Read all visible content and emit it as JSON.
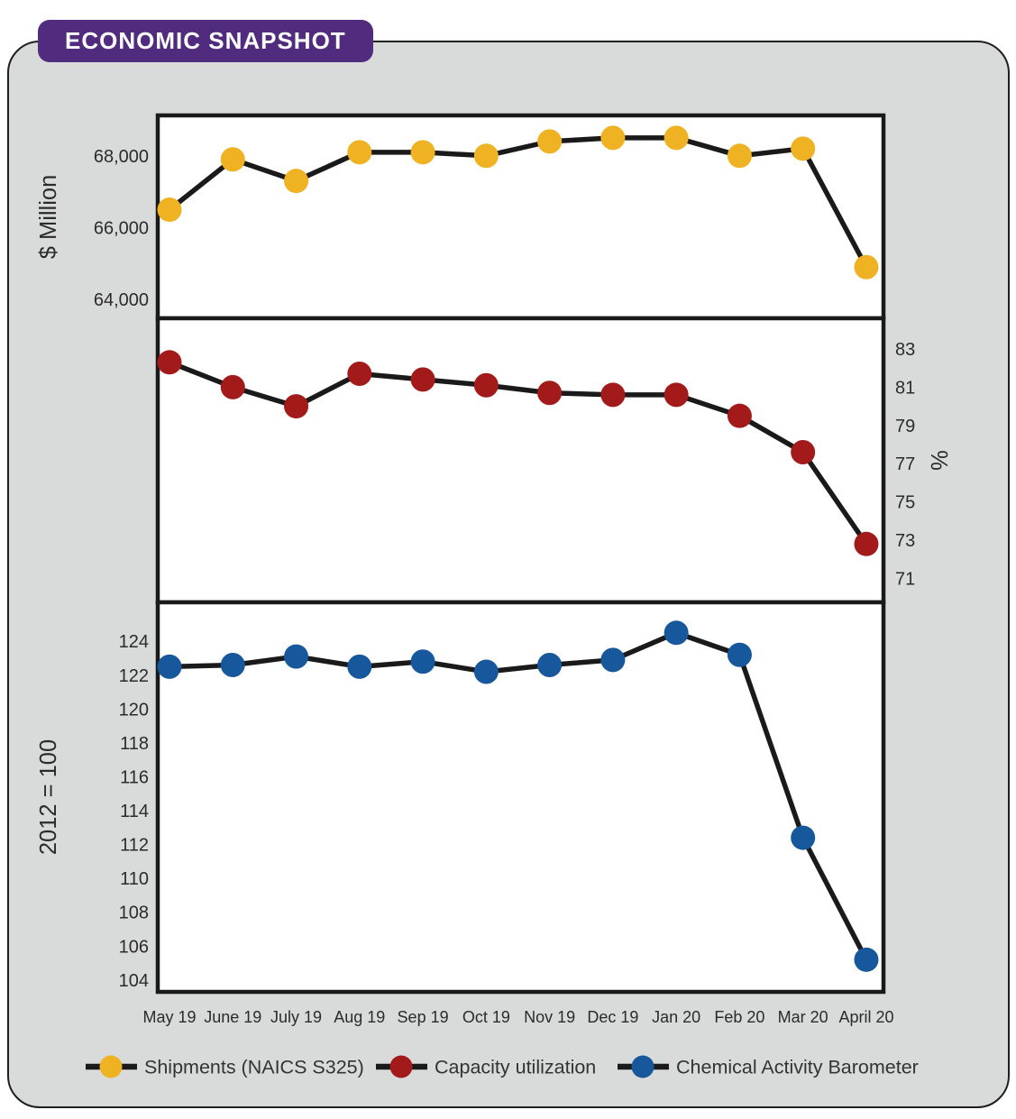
{
  "page": {
    "title": "ECONOMIC SNAPSHOT",
    "colors": {
      "badge_purple": "#512B7E",
      "card_gray": "#D8DBDA",
      "line_black": "#1a1a1a",
      "axis_text": "#2d2a2b",
      "shipments_yellow": "#EFB223",
      "capacity_red": "#A21A1A",
      "cab_blue": "#17579B"
    }
  },
  "x_categories": [
    "May 19",
    "June 19",
    "July 19",
    "Aug 19",
    "Sep 19",
    "Oct 19",
    "Nov 19",
    "Dec 19",
    "Jan 20",
    "Feb 20",
    "Mar 20",
    "April 20"
  ],
  "chart_data": [
    {
      "type": "line",
      "panel": "shipments",
      "ylabel": "$ Million",
      "yaxis_side": "left",
      "ylim": [
        63475,
        69125
      ],
      "ytick_values": [
        68000,
        66000,
        64000
      ],
      "ytick_labels": [
        "68,000",
        "66,000",
        "64,000"
      ],
      "grid": false,
      "series": [
        {
          "name": "Shipments (NAICS S325)",
          "color": "#EFB223",
          "values": [
            66500,
            67900,
            67300,
            68100,
            68100,
            68000,
            68400,
            68500,
            68500,
            68000,
            68200,
            64900
          ]
        }
      ]
    },
    {
      "type": "line",
      "panel": "capacity-utilization",
      "ylabel": "%",
      "yaxis_side": "right",
      "ylim": [
        69.75,
        84.6
      ],
      "ytick_values": [
        83,
        81,
        79,
        77,
        75,
        73,
        71
      ],
      "ytick_labels": [
        "83",
        "81",
        "79",
        "77",
        "75",
        "73",
        "71"
      ],
      "grid": false,
      "series": [
        {
          "name": "Capacity utilization",
          "color": "#A21A1A",
          "values": [
            82.3,
            81.0,
            80.0,
            81.7,
            81.4,
            81.1,
            80.7,
            80.6,
            80.6,
            79.5,
            77.6,
            72.8
          ]
        }
      ]
    },
    {
      "type": "line",
      "panel": "chemical-activity-barometer",
      "ylabel": "2012 = 100",
      "yaxis_side": "left",
      "ylim": [
        103.3,
        126.3
      ],
      "ytick_values": [
        124,
        122,
        120,
        118,
        116,
        114,
        112,
        110,
        108,
        106,
        104
      ],
      "ytick_labels": [
        "124",
        "122",
        "120",
        "118",
        "116",
        "114",
        "112",
        "110",
        "108",
        "106",
        "104"
      ],
      "grid": false,
      "series": [
        {
          "name": "Chemical Activity Barometer",
          "color": "#17579B",
          "values": [
            122.5,
            122.6,
            123.1,
            122.5,
            122.8,
            122.2,
            122.6,
            122.9,
            124.5,
            123.2,
            112.4,
            105.2
          ]
        }
      ]
    }
  ],
  "legend": [
    {
      "label": "Shipments (NAICS S325)",
      "color": "#EFB223"
    },
    {
      "label": "Capacity utilization",
      "color": "#A21A1A"
    },
    {
      "label": "Chemical Activity Barometer",
      "color": "#17579B"
    }
  ]
}
